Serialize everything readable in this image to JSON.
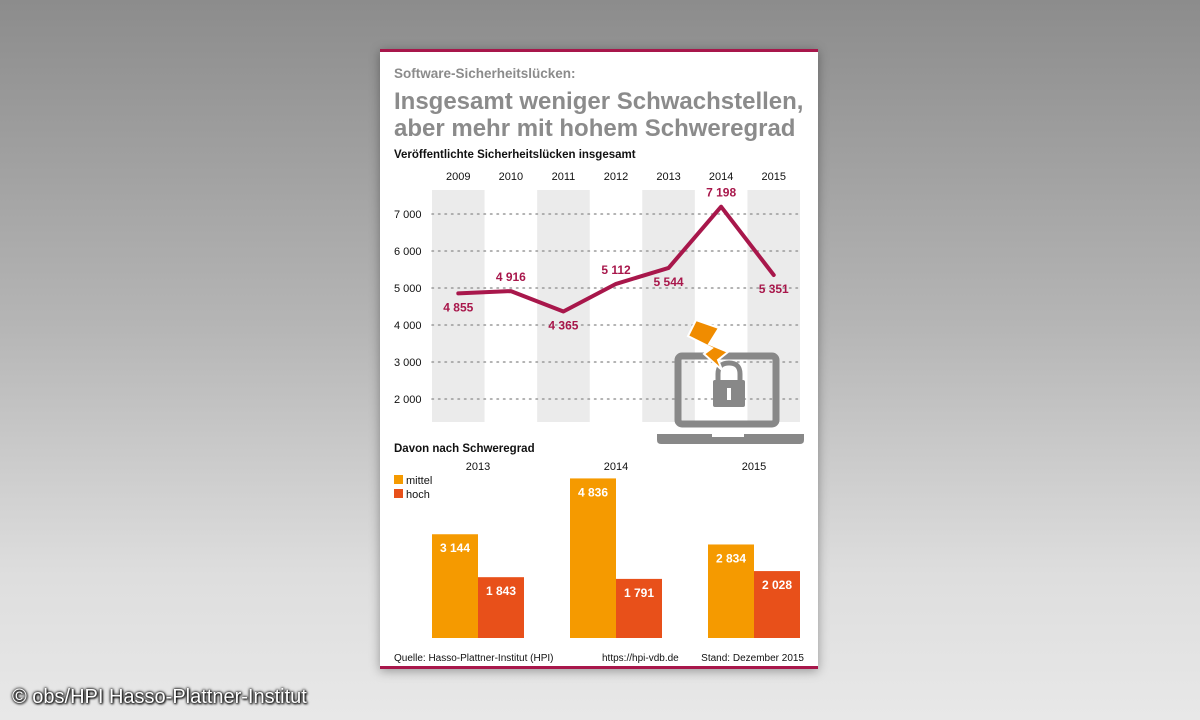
{
  "header": {
    "kicker": "Software-Sicherheitslücken:",
    "title_line1": "Insgesamt weniger Schwachstellen,",
    "title_line2": "aber mehr mit hohem Schweregrad"
  },
  "footer": {
    "source": "Quelle: Hasso-Plattner-Institut (HPI)",
    "url": "https://hpi-vdb.de",
    "date": "Stand: Dezember 2015"
  },
  "credit": "© obs/HPI Hasso-Plattner-Institut",
  "colors": {
    "line": "#a8174b",
    "mittel": "#f59a00",
    "hoch": "#e8501a",
    "column_band": "#ebebeb",
    "icon_gray": "#888888",
    "bolt": "#f08c00"
  },
  "icons": [
    "laptop-icon",
    "padlock-icon",
    "lightning-bolt-icon"
  ],
  "chart_data": [
    {
      "type": "line",
      "title": "Veröffentlichte Sicherheitslücken insgesamt",
      "x": [
        "2009",
        "2010",
        "2011",
        "2012",
        "2013",
        "2014",
        "2015"
      ],
      "y": [
        4855,
        4916,
        4365,
        5112,
        5544,
        7198,
        5351
      ],
      "data_labels": [
        "4 855",
        "4 916",
        "4 365",
        "5 112",
        "5 544",
        "7 198",
        "5 351"
      ],
      "ylim": [
        1500,
        7500
      ],
      "y_ticks": [
        2000,
        3000,
        4000,
        5000,
        6000,
        7000
      ],
      "y_tick_labels": [
        "2 000",
        "3 000",
        "4 000",
        "5 000",
        "6 000",
        "7 000"
      ],
      "grid": "dotted horizontal",
      "alternating_column_bands": true
    },
    {
      "type": "bar",
      "title": "Davon nach Schweregrad",
      "categories": [
        "2013",
        "2014",
        "2015"
      ],
      "series": [
        {
          "name": "mittel",
          "values": [
            3144,
            4836,
            2834
          ],
          "labels": [
            "3 144",
            "4 836",
            "2 834"
          ]
        },
        {
          "name": "hoch",
          "values": [
            1843,
            1791,
            2028
          ],
          "labels": [
            "1 843",
            "1 791",
            "2 028"
          ]
        }
      ],
      "ylim": [
        0,
        5500
      ],
      "legend": "top-left"
    }
  ]
}
